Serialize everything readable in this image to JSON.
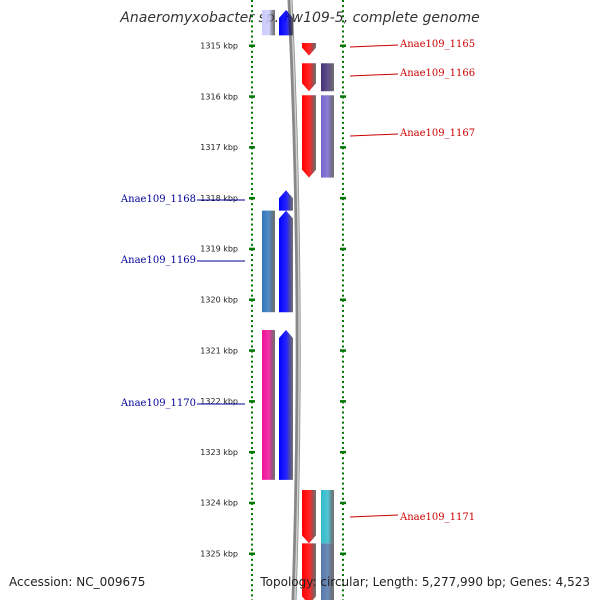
{
  "title": "Anaeromyxobacter sp. Fw109-5, complete genome",
  "accession": "Accession: NC_009675",
  "summary": "Topology: circular; Length: 5,277,990 bp; Genes: 4,523",
  "ticks": [
    "1315 kbp",
    "1316 kbp",
    "1317 kbp",
    "1318 kbp",
    "1319 kbp",
    "1320 kbp",
    "1321 kbp",
    "1322 kbp",
    "1323 kbp",
    "1324 kbp",
    "1325 kbp"
  ],
  "colors": {
    "forward": "#ff0000",
    "reverse": "#0000ff",
    "forward_label": "#cc0000",
    "reverse_label": "#000099",
    "tick": "#007700",
    "backbone": "#888888"
  },
  "genes": [
    {
      "label": "",
      "strand": "reverse",
      "start_kbp": 1314.3,
      "end_kbp": 1314.8,
      "color": "#0000ff",
      "cog_color": "#ccccff"
    },
    {
      "label": "Anae109_1165",
      "strand": "forward",
      "start_kbp": 1314.95,
      "end_kbp": 1315.2,
      "color": "#ff0000"
    },
    {
      "label": "Anae109_1166",
      "strand": "forward",
      "start_kbp": 1315.35,
      "end_kbp": 1315.9,
      "color": "#ff0000",
      "cog_color": "#443377"
    },
    {
      "label": "Anae109_1167",
      "strand": "forward",
      "start_kbp": 1315.98,
      "end_kbp": 1317.6,
      "color": "#ff0000",
      "cog_color": "#7766cc"
    },
    {
      "label": "Anae109_1168",
      "strand": "reverse",
      "start_kbp": 1317.85,
      "end_kbp": 1318.25,
      "color": "#0000ff"
    },
    {
      "label": "Anae109_1169",
      "strand": "reverse",
      "start_kbp": 1318.25,
      "end_kbp": 1320.25,
      "color": "#0000ff",
      "cog_color": "#3377bb"
    },
    {
      "label": "Anae109_1170",
      "strand": "reverse",
      "start_kbp": 1320.6,
      "end_kbp": 1323.55,
      "color": "#0000ff",
      "cog_color": "#ee1199"
    },
    {
      "label": "Anae109_1171",
      "strand": "forward",
      "start_kbp": 1323.75,
      "end_kbp": 1324.8,
      "color": "#ff0000",
      "cog_color": "#33bbcc"
    },
    {
      "label": "",
      "strand": "forward",
      "start_kbp": 1324.8,
      "end_kbp": 1326.0,
      "color": "#ff0000",
      "cog_color": "#5577aa"
    }
  ]
}
